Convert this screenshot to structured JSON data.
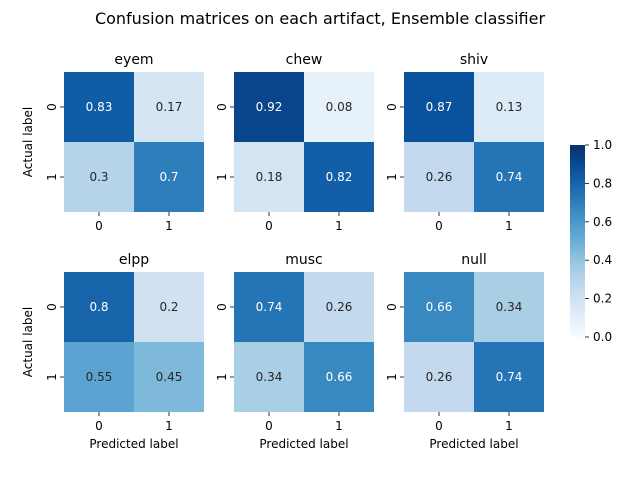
{
  "chart_data": {
    "type": "heatmap",
    "title": "Confusion matrices on each artifact, Ensemble classifier",
    "xlabel": "Predicted label",
    "ylabel": "Actual label",
    "colormap": "Blues",
    "vmin": 0,
    "vmax": 1,
    "colorbar_ticks": [
      "0.0",
      "0.2",
      "0.4",
      "0.6",
      "0.8",
      "1.0"
    ],
    "x_ticks": [
      "0",
      "1"
    ],
    "y_ticks": [
      "0",
      "1"
    ],
    "panels": [
      {
        "name": "eyem",
        "values": [
          [
            0.83,
            0.17
          ],
          [
            0.3,
            0.7
          ]
        ]
      },
      {
        "name": "chew",
        "values": [
          [
            0.92,
            0.08
          ],
          [
            0.18,
            0.82
          ]
        ]
      },
      {
        "name": "shiv",
        "values": [
          [
            0.87,
            0.13
          ],
          [
            0.26,
            0.74
          ]
        ]
      },
      {
        "name": "elpp",
        "values": [
          [
            0.8,
            0.2
          ],
          [
            0.55,
            0.45
          ]
        ]
      },
      {
        "name": "musc",
        "values": [
          [
            0.74,
            0.26
          ],
          [
            0.34,
            0.66
          ]
        ]
      },
      {
        "name": "null",
        "values": [
          [
            0.66,
            0.34
          ],
          [
            0.26,
            0.74
          ]
        ]
      }
    ]
  }
}
